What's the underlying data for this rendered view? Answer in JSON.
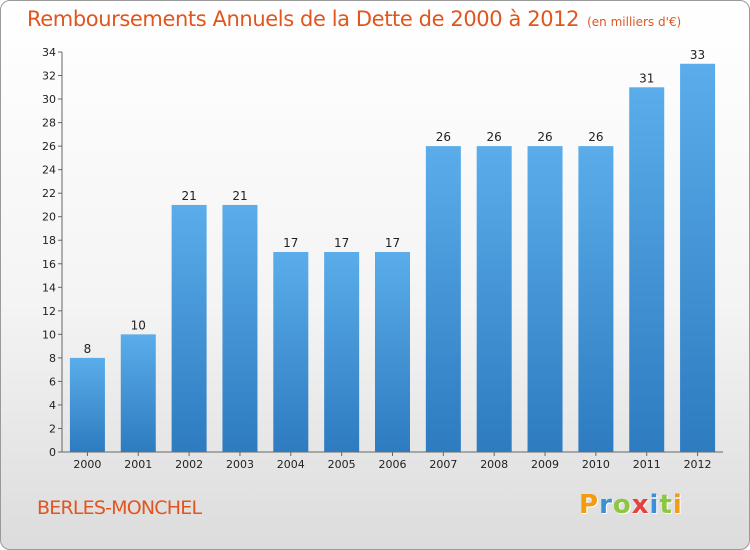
{
  "title": "Remboursements Annuels de la Dette de 2000 à 2012",
  "unit": "(en milliers d'€)",
  "commune": "BERLES-MONCHEL",
  "logo": {
    "letters": [
      "P",
      "r",
      "o",
      "x",
      "i",
      "t",
      "i"
    ],
    "colors": [
      "#f39c12",
      "#3a8fd8",
      "#8dc63f",
      "#e83e3e",
      "#3a8fd8",
      "#8dc63f",
      "#f39c12"
    ]
  },
  "colors": {
    "bar": "#4f9fdd",
    "title": "#e0561e"
  },
  "chart_data": {
    "type": "bar",
    "categories": [
      "2000",
      "2001",
      "2002",
      "2003",
      "2004",
      "2005",
      "2006",
      "2007",
      "2008",
      "2009",
      "2010",
      "2011",
      "2012"
    ],
    "values": [
      8,
      10,
      21,
      21,
      17,
      17,
      17,
      26,
      26,
      26,
      26,
      31,
      33
    ],
    "ylim": [
      0,
      34
    ],
    "yticks": [
      0,
      2,
      4,
      6,
      8,
      10,
      12,
      14,
      16,
      18,
      20,
      22,
      24,
      26,
      28,
      30,
      32,
      34
    ],
    "grid": false
  }
}
